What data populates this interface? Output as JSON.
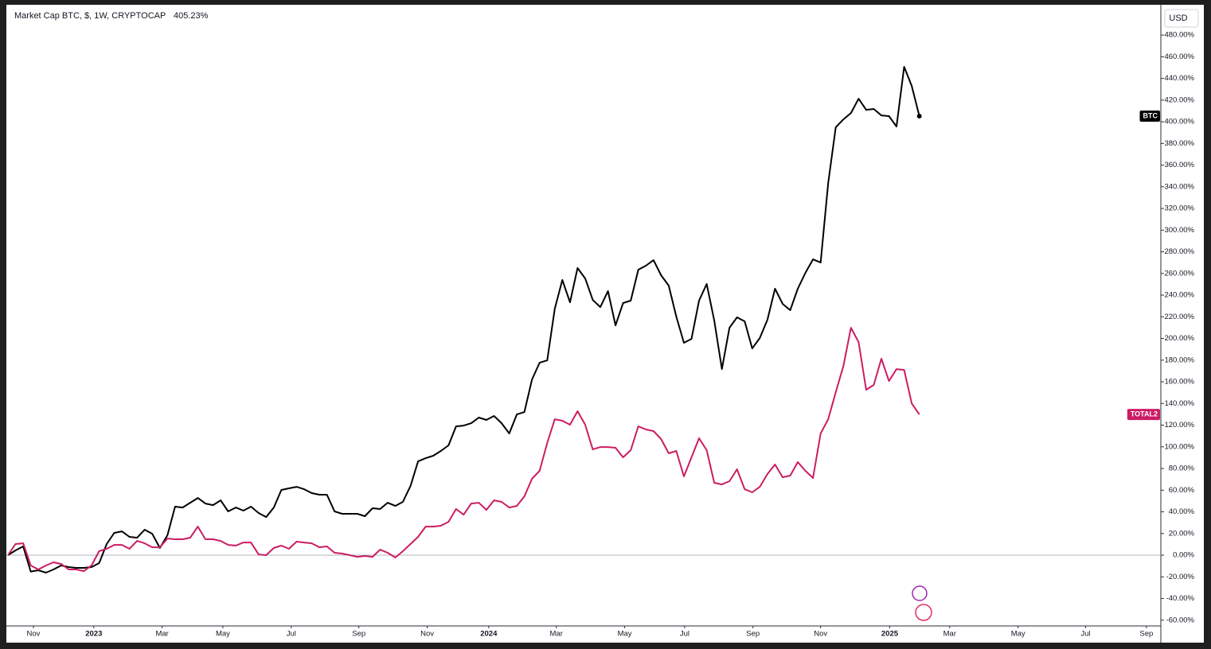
{
  "chart_data": {
    "type": "line",
    "title": "Market Cap BTC, $, 1W, CRYPTOCAP",
    "title_value": "405.23%",
    "currency": "USD",
    "x": [
      0,
      1,
      2,
      3,
      4,
      5,
      6,
      7,
      8,
      9,
      10,
      11,
      12,
      13,
      14,
      15,
      16,
      17,
      18,
      19,
      20,
      21,
      22,
      23,
      24,
      25,
      26,
      27,
      28,
      29,
      30,
      31,
      32,
      33,
      34,
      35,
      36,
      37,
      38,
      39,
      40,
      41,
      42,
      43,
      44,
      45,
      46,
      47,
      48,
      49,
      50,
      51,
      52,
      53,
      54,
      55,
      56,
      57,
      58,
      59,
      60,
      61,
      62,
      63,
      64,
      65,
      66,
      67,
      68,
      69,
      70,
      71,
      72,
      73,
      74,
      75,
      76,
      77,
      78,
      79,
      80,
      81,
      82,
      83,
      84,
      85,
      86,
      87,
      88,
      89,
      90,
      91,
      92,
      93,
      94,
      95,
      96,
      97,
      98,
      99,
      100,
      101,
      102,
      103,
      104,
      105,
      106,
      107,
      108,
      109,
      110,
      111,
      112,
      113,
      114,
      115,
      116,
      117,
      118,
      119,
      120
    ],
    "xlim": [
      0,
      151.8
    ],
    "xticks": [
      {
        "value": 3.35,
        "label": "Nov"
      },
      {
        "value": 11.3,
        "label": "2023"
      },
      {
        "value": 20.3,
        "label": "Mar"
      },
      {
        "value": 28.3,
        "label": "May"
      },
      {
        "value": 37.3,
        "label": "Jul"
      },
      {
        "value": 46.2,
        "label": "Sep"
      },
      {
        "value": 55.2,
        "label": "Nov"
      },
      {
        "value": 63.3,
        "label": "2024"
      },
      {
        "value": 72.2,
        "label": "Mar"
      },
      {
        "value": 81.2,
        "label": "May"
      },
      {
        "value": 89.1,
        "label": "Jul"
      },
      {
        "value": 98.1,
        "label": "Sep"
      },
      {
        "value": 107.0,
        "label": "Nov"
      },
      {
        "value": 116.1,
        "label": "2025"
      },
      {
        "value": 124.0,
        "label": "Mar"
      },
      {
        "value": 133.0,
        "label": "May"
      },
      {
        "value": 141.9,
        "label": "Jul"
      },
      {
        "value": 149.9,
        "label": "Sep"
      }
    ],
    "ylim": [
      -65.3,
      506.5
    ],
    "yticks": [
      {
        "value": -60,
        "label": "-60.00%"
      },
      {
        "value": -40,
        "label": "-40.00%"
      },
      {
        "value": -20,
        "label": "-20.00%"
      },
      {
        "value": 0,
        "label": "0.00%"
      },
      {
        "value": 20,
        "label": "20.00%"
      },
      {
        "value": 40,
        "label": "40.00%"
      },
      {
        "value": 60,
        "label": "60.00%"
      },
      {
        "value": 80,
        "label": "80.00%"
      },
      {
        "value": 100,
        "label": "100.00%"
      },
      {
        "value": 120,
        "label": "120.00%"
      },
      {
        "value": 140,
        "label": "140.00%"
      },
      {
        "value": 160,
        "label": "160.00%"
      },
      {
        "value": 180,
        "label": "180.00%"
      },
      {
        "value": 200,
        "label": "200.00%"
      },
      {
        "value": 220,
        "label": "220.00%"
      },
      {
        "value": 240,
        "label": "240.00%"
      },
      {
        "value": 260,
        "label": "260.00%"
      },
      {
        "value": 280,
        "label": "280.00%"
      },
      {
        "value": 300,
        "label": "300.00%"
      },
      {
        "value": 320,
        "label": "320.00%"
      },
      {
        "value": 340,
        "label": "340.00%"
      },
      {
        "value": 360,
        "label": "360.00%"
      },
      {
        "value": 380,
        "label": "380.00%"
      },
      {
        "value": 400,
        "label": "400.00%"
      },
      {
        "value": 420,
        "label": "420.00%"
      },
      {
        "value": 440,
        "label": "440.00%"
      },
      {
        "value": 460,
        "label": "460.00%"
      },
      {
        "value": 480,
        "label": "480.00%"
      }
    ],
    "grid": false,
    "series": [
      {
        "name": "BTC",
        "color": "#000000",
        "values": [
          0,
          4.4,
          8.1,
          -15.1,
          -13.9,
          -16.1,
          -13.2,
          -9.5,
          -11.0,
          -11.7,
          -11.7,
          -11.0,
          -7.3,
          10.3,
          20.6,
          22.0,
          16.9,
          16.1,
          23.5,
          19.8,
          6.6,
          18.4,
          44.8,
          44.0,
          48.4,
          52.8,
          47.7,
          46.2,
          50.6,
          40.4,
          44.0,
          41.1,
          44.8,
          38.9,
          35.2,
          44.0,
          60.2,
          61.7,
          63.1,
          60.9,
          57.3,
          55.8,
          55.8,
          40.4,
          38.2,
          38.2,
          38.2,
          36.0,
          43.3,
          42.6,
          48.4,
          45.5,
          49.2,
          63.9,
          86.6,
          89.5,
          91.8,
          96.2,
          101.3,
          118.9,
          119.6,
          121.8,
          127.0,
          124.8,
          128.5,
          121.8,
          112.3,
          129.9,
          132.1,
          162.2,
          177.6,
          179.8,
          227.5,
          254.0,
          233.4,
          265.0,
          255.4,
          235.6,
          229.0,
          243.7,
          212.1,
          232.7,
          234.9,
          263.5,
          267.2,
          272.3,
          258.4,
          248.8,
          220.2,
          196.0,
          199.6,
          234.9,
          250.3,
          216.5,
          171.8,
          209.9,
          219.5,
          215.8,
          190.8,
          200.4,
          217.3,
          245.9,
          231.9,
          226.1,
          245.9,
          260.6,
          273.0,
          270.1,
          343.5,
          394.9,
          402.2,
          408.1,
          421.3,
          411.0,
          411.8,
          405.9,
          405.2,
          395.6,
          450.7,
          433.1,
          405.23
        ]
      },
      {
        "name": "TOTAL2",
        "color": "#cc1c63",
        "values": [
          0,
          10.3,
          11.0,
          -9.5,
          -13.2,
          -9.5,
          -6.6,
          -8.1,
          -13.2,
          -13.2,
          -14.7,
          -9.5,
          3.7,
          5.9,
          9.5,
          9.5,
          5.9,
          13.2,
          11.0,
          7.3,
          7.3,
          15.4,
          14.7,
          14.7,
          16.1,
          26.4,
          14.7,
          14.7,
          13.2,
          9.5,
          8.8,
          11.7,
          11.7,
          0.7,
          0,
          6.6,
          8.8,
          5.9,
          12.5,
          11.7,
          11.0,
          7.3,
          8.1,
          2.2,
          1.5,
          0,
          -1.5,
          -0.7,
          -1.5,
          5.1,
          2.2,
          -2.2,
          3.7,
          10.3,
          16.9,
          26.4,
          26.4,
          27.2,
          30.8,
          42.6,
          37.4,
          47.7,
          48.4,
          41.8,
          50.6,
          49.2,
          44.0,
          45.5,
          54.3,
          70.5,
          77.8,
          103.5,
          125.5,
          124.1,
          120.4,
          132.9,
          120.4,
          97.6,
          99.8,
          99.8,
          99.1,
          90.3,
          96.9,
          118.9,
          116.0,
          114.5,
          107.2,
          94.0,
          96.2,
          72.7,
          90.3,
          107.9,
          96.9,
          66.8,
          65.3,
          68.3,
          79.3,
          60.9,
          58.0,
          63.1,
          74.9,
          83.7,
          71.9,
          73.4,
          85.9,
          77.8,
          71.2,
          112.3,
          125.5,
          150.4,
          174.6,
          209.9,
          196.7,
          152.7,
          157.1,
          181.3,
          160.7,
          171.7,
          171.0,
          140.1,
          129.9
        ]
      }
    ]
  }
}
